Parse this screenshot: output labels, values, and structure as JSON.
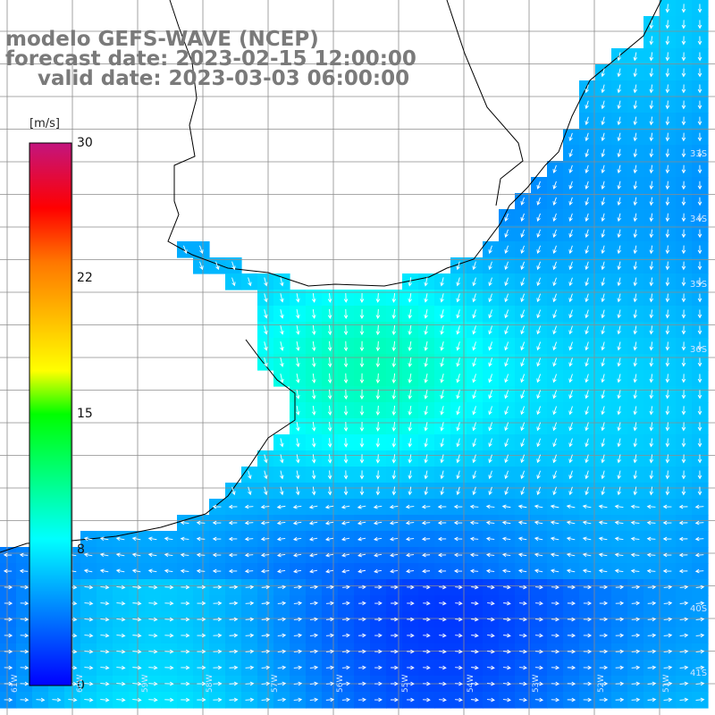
{
  "titles": {
    "line1": "modelo GEFS-WAVE (NCEP)",
    "line2": "forecast date: 2023-02-15 12:00:00",
    "line3": "valid date: 2023-03-03 06:00:00"
  },
  "colorbar": {
    "unit": "[m/s]",
    "ticks": [
      "30",
      "22",
      "15",
      "8",
      "0"
    ],
    "tick_values": [
      30,
      22,
      15,
      8,
      0
    ]
  },
  "lat_labels": [
    "33S",
    "34S",
    "35S",
    "36S",
    "40S",
    "41S"
  ],
  "lon_labels": [
    "61W",
    "60W",
    "59W",
    "58W",
    "57W",
    "56W",
    "55W",
    "54W",
    "53W",
    "52W",
    "51W"
  ],
  "colors": {
    "land": "#ffffff",
    "grid": "#8c8c8c",
    "coast": "#000000",
    "arrows": "#ffffff",
    "title": "#7a7a7a"
  }
}
